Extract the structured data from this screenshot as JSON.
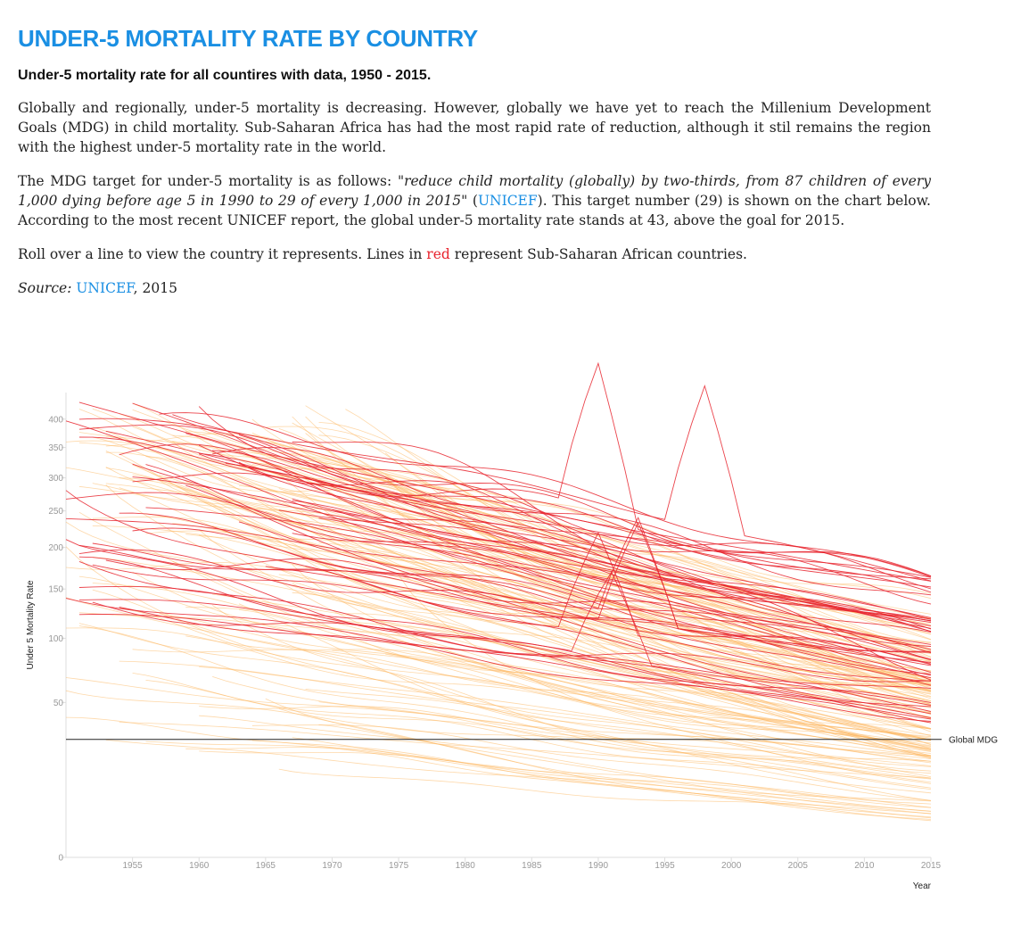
{
  "header": {
    "title": "UNDER-5 MORTALITY RATE BY COUNTRY",
    "subtitle": "Under-5 mortality rate for all countires with data, 1950 - 2015."
  },
  "text": {
    "p1": "Globally and regionally, under-5 mortality is decreasing. However, globally we have yet to reach the Millenium Development Goals (MDG) in child mortality. Sub-Saharan Africa has had the most rapid rate of reduction, although it stil remains the region with the highest under-5 mortality rate in the world.",
    "p2_before": "The MDG target for under-5 mortality is as follows: ",
    "p2_quote": "\"reduce child mortality (globally) by two-thirds, from 87 children of every 1,000 dying before age 5 in 1990 to 29 of every 1,000 in 2015\"",
    "p2_open": " (",
    "p2_link": "UNICEF",
    "p2_after": "). This target number (29) is shown on the chart below. According to the most recent UNICEF report, the global under-5 mortality rate stands at 43, above the goal for 2015.",
    "p3_before": "Roll over a line to view the country it represents. Lines in ",
    "p3_red": "red",
    "p3_after": " represent Sub-Saharan African countries.",
    "source_label": "Source:",
    "source_link": "UNICEF",
    "source_year": ", 2015"
  },
  "chart_data": {
    "type": "line",
    "xlabel": "Year",
    "ylabel": "Under 5 Mortality Rate",
    "xlim": [
      1950,
      2015
    ],
    "x_ticks": [
      1955,
      1960,
      1965,
      1970,
      1975,
      1980,
      1985,
      1990,
      1995,
      2000,
      2005,
      2010,
      2015
    ],
    "y_scale": "sqrt",
    "ylim": [
      0,
      450
    ],
    "y_ticks": [
      0,
      50,
      100,
      150,
      200,
      250,
      300,
      350,
      400
    ],
    "reference_line": {
      "label": "Global MDG",
      "value": 29
    },
    "colors": {
      "sub_saharan": "#e8232d",
      "other": "#fdb863",
      "mdg": "#222222"
    },
    "groups": [
      {
        "region": "sub_saharan",
        "count": 55,
        "start_range": [
          120,
          430
        ],
        "end_range": [
          40,
          160
        ],
        "start_year_range": [
          1950,
          1970
        ]
      },
      {
        "region": "other",
        "count": 150,
        "start_range": [
          15,
          420
        ],
        "end_range": [
          3,
          60
        ],
        "start_year_range": [
          1950,
          1975
        ]
      }
    ]
  }
}
